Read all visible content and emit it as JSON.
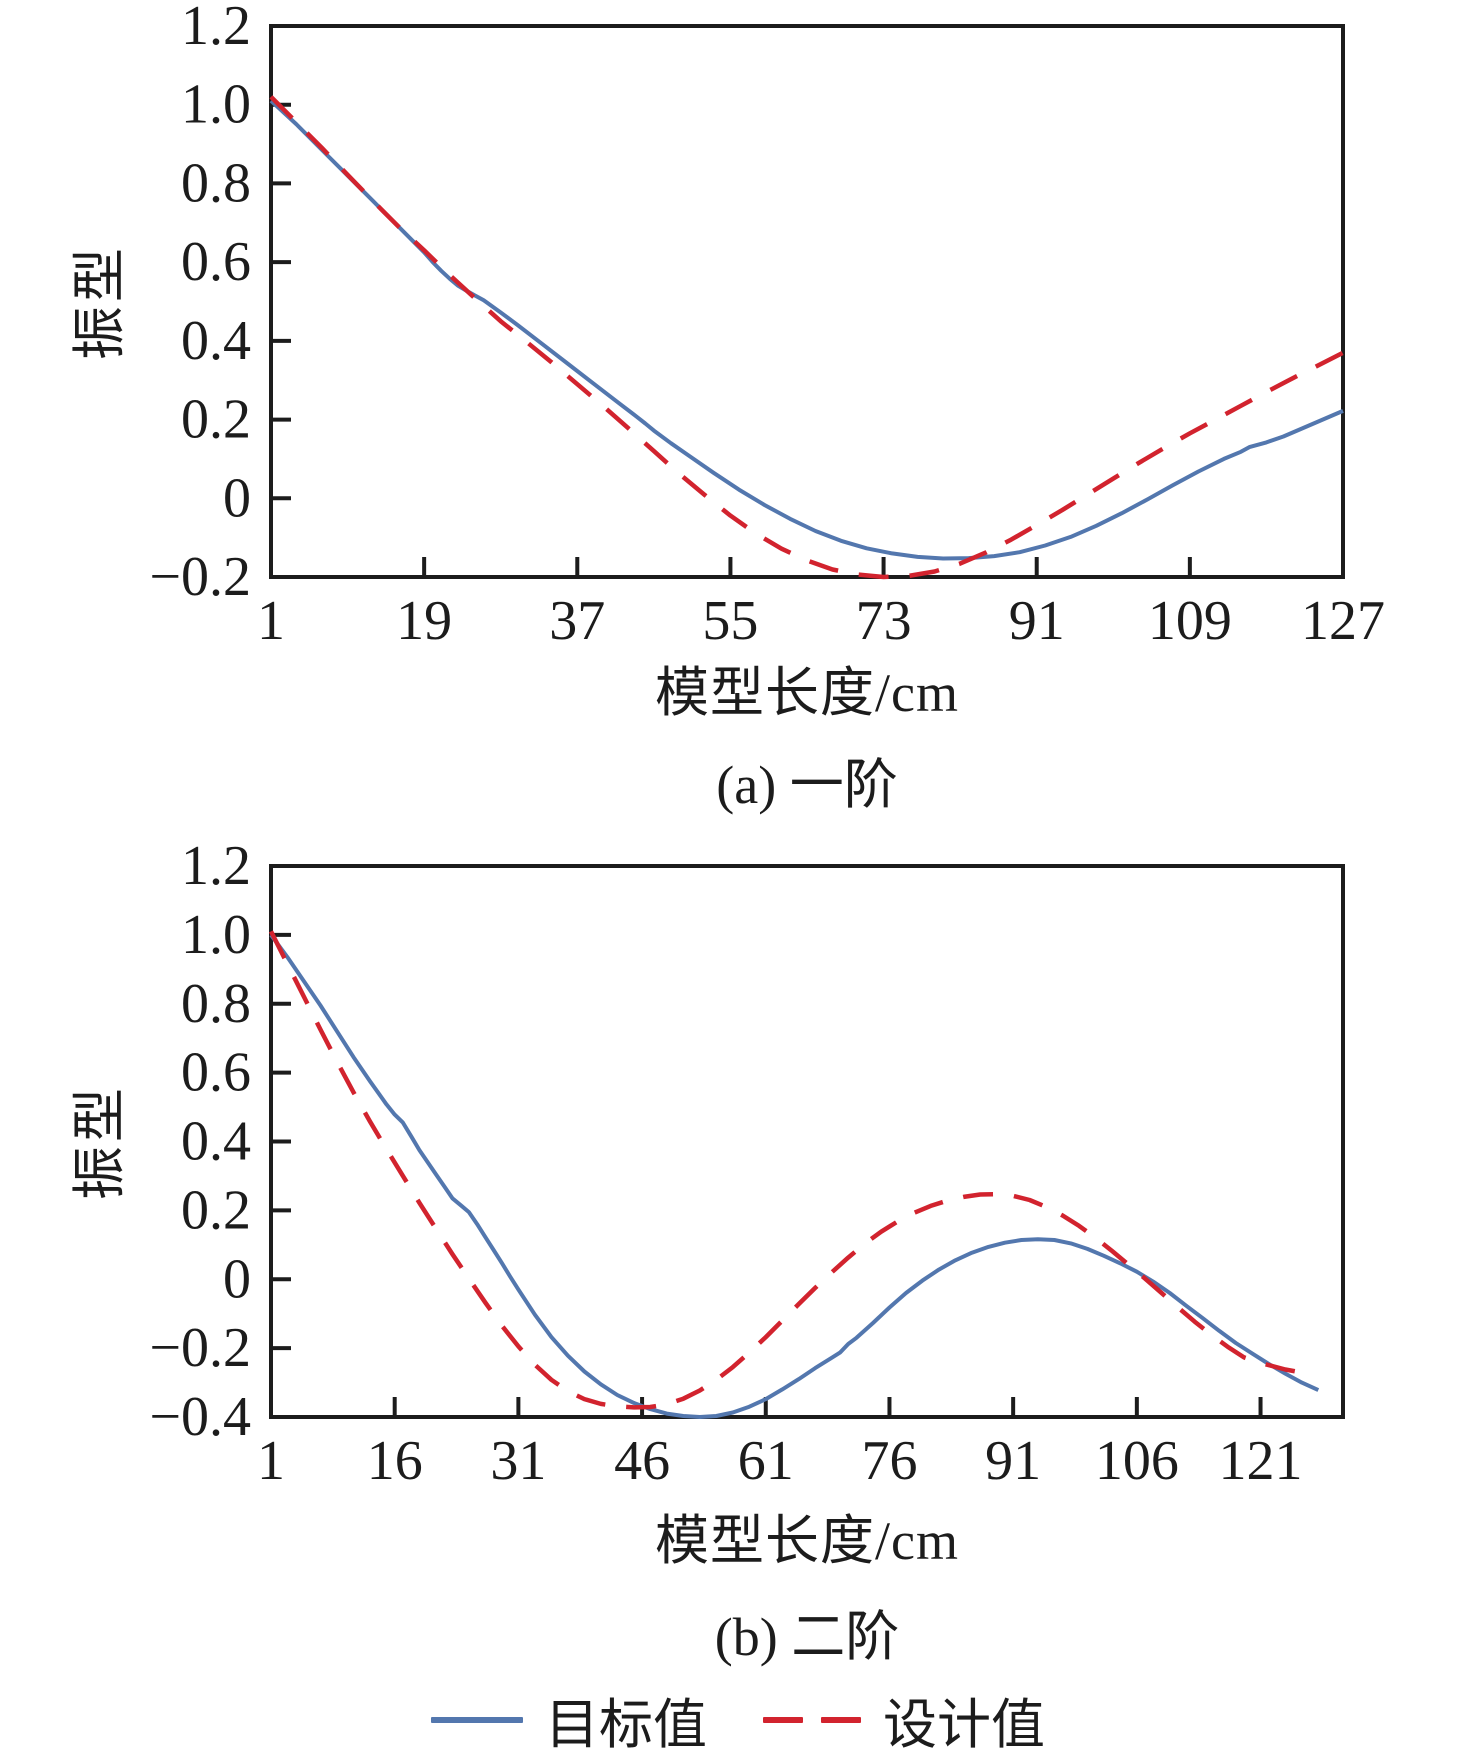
{
  "colors": {
    "target_line": "#5377ae",
    "design_line": "#d2232e",
    "axis": "#1c1c1c",
    "text": "#1c1c1c",
    "background": "#ffffff"
  },
  "legend": {
    "target_label": "目标值",
    "design_label": "设计值"
  },
  "chart_data": [
    {
      "type": "line",
      "caption": "(a) 一阶",
      "xlabel": "模型长度/cm",
      "ylabel": "振型",
      "xlim": [
        1,
        127
      ],
      "ylim": [
        -0.2,
        1.2
      ],
      "grid": false,
      "x_ticks": [
        1,
        19,
        37,
        55,
        73,
        91,
        109,
        127
      ],
      "x_tick_labels": [
        "1",
        "19",
        "37",
        "55",
        "73",
        "91",
        "109",
        "127"
      ],
      "y_ticks": [
        1.2,
        1.0,
        0.8,
        0.6,
        0.4,
        0.2,
        0,
        -0.2
      ],
      "y_tick_labels": [
        "1.2",
        "1.0",
        "0.8",
        "0.6",
        "0.4",
        "0.2",
        "0",
        "−0.2"
      ],
      "series": [
        {
          "name": "目标值",
          "line_style": "solid",
          "color": "#5377ae",
          "points": [
            [
              1,
              1.01
            ],
            [
              4,
              0.95
            ],
            [
              7,
              0.885
            ],
            [
              10,
              0.82
            ],
            [
              13,
              0.755
            ],
            [
              16,
              0.69
            ],
            [
              19,
              0.625
            ],
            [
              20,
              0.6
            ],
            [
              21,
              0.578
            ],
            [
              22,
              0.558
            ],
            [
              23,
              0.54
            ],
            [
              24,
              0.527
            ],
            [
              25,
              0.515
            ],
            [
              26,
              0.503
            ],
            [
              28,
              0.472
            ],
            [
              30,
              0.44
            ],
            [
              33,
              0.39
            ],
            [
              36,
              0.34
            ],
            [
              39,
              0.29
            ],
            [
              42,
              0.24
            ],
            [
              44,
              0.207
            ],
            [
              45,
              0.19
            ],
            [
              46,
              0.172
            ],
            [
              48,
              0.14
            ],
            [
              50,
              0.11
            ],
            [
              53,
              0.065
            ],
            [
              56,
              0.022
            ],
            [
              59,
              -0.017
            ],
            [
              62,
              -0.052
            ],
            [
              65,
              -0.083
            ],
            [
              68,
              -0.108
            ],
            [
              71,
              -0.127
            ],
            [
              74,
              -0.14
            ],
            [
              77,
              -0.149
            ],
            [
              80,
              -0.153
            ],
            [
              83,
              -0.152
            ],
            [
              86,
              -0.147
            ],
            [
              89,
              -0.137
            ],
            [
              92,
              -0.12
            ],
            [
              95,
              -0.098
            ],
            [
              98,
              -0.07
            ],
            [
              101,
              -0.038
            ],
            [
              104,
              -0.003
            ],
            [
              107,
              0.033
            ],
            [
              110,
              0.068
            ],
            [
              113,
              0.1
            ],
            [
              115,
              0.118
            ],
            [
              116,
              0.13
            ],
            [
              118,
              0.142
            ],
            [
              120,
              0.157
            ],
            [
              123,
              0.185
            ],
            [
              127,
              0.222
            ]
          ]
        },
        {
          "name": "设计值",
          "line_style": "dashed",
          "color": "#d2232e",
          "points": [
            [
              1,
              1.02
            ],
            [
              4,
              0.955
            ],
            [
              7,
              0.89
            ],
            [
              10,
              0.822
            ],
            [
              13,
              0.755
            ],
            [
              16,
              0.69
            ],
            [
              19,
              0.63
            ],
            [
              22,
              0.567
            ],
            [
              25,
              0.508
            ],
            [
              28,
              0.45
            ],
            [
              31,
              0.398
            ],
            [
              34,
              0.345
            ],
            [
              37,
              0.29
            ],
            [
              40,
              0.235
            ],
            [
              43,
              0.178
            ],
            [
              46,
              0.12
            ],
            [
              49,
              0.062
            ],
            [
              52,
              0.008
            ],
            [
              55,
              -0.044
            ],
            [
              58,
              -0.09
            ],
            [
              61,
              -0.128
            ],
            [
              64,
              -0.158
            ],
            [
              67,
              -0.181
            ],
            [
              70,
              -0.194
            ],
            [
              73,
              -0.2
            ],
            [
              76,
              -0.197
            ],
            [
              79,
              -0.186
            ],
            [
              82,
              -0.166
            ],
            [
              85,
              -0.138
            ],
            [
              88,
              -0.105
            ],
            [
              91,
              -0.068
            ],
            [
              94,
              -0.03
            ],
            [
              97,
              0.01
            ],
            [
              100,
              0.05
            ],
            [
              103,
              0.09
            ],
            [
              106,
              0.128
            ],
            [
              109,
              0.165
            ],
            [
              112,
              0.2
            ],
            [
              115,
              0.235
            ],
            [
              118,
              0.27
            ],
            [
              121,
              0.304
            ],
            [
              124,
              0.337
            ],
            [
              127,
              0.37
            ]
          ]
        }
      ]
    },
    {
      "type": "line",
      "caption": "(b) 二阶",
      "xlabel": "模型长度/cm",
      "ylabel": "振型",
      "xlim": [
        1,
        131
      ],
      "ylim": [
        -0.4,
        1.2
      ],
      "grid": false,
      "x_ticks": [
        1,
        16,
        31,
        46,
        61,
        76,
        91,
        106,
        121
      ],
      "x_tick_labels": [
        "1",
        "16",
        "31",
        "46",
        "61",
        "76",
        "91",
        "106",
        "121"
      ],
      "y_ticks": [
        1.2,
        1.0,
        0.8,
        0.6,
        0.4,
        0.2,
        0,
        -0.2,
        -0.4
      ],
      "y_tick_labels": [
        "1.2",
        "1.0",
        "0.8",
        "0.6",
        "0.4",
        "0.2",
        "0",
        "−0.2",
        "−0.4"
      ],
      "series": [
        {
          "name": "目标值",
          "line_style": "solid",
          "color": "#5377ae",
          "points": [
            [
              1,
              1.0
            ],
            [
              3,
              0.935
            ],
            [
              5,
              0.865
            ],
            [
              7,
              0.795
            ],
            [
              9,
              0.72
            ],
            [
              11,
              0.645
            ],
            [
              13,
              0.575
            ],
            [
              15,
              0.508
            ],
            [
              16,
              0.478
            ],
            [
              17,
              0.455
            ],
            [
              18,
              0.415
            ],
            [
              19,
              0.375
            ],
            [
              20,
              0.34
            ],
            [
              21,
              0.305
            ],
            [
              22,
              0.27
            ],
            [
              23,
              0.235
            ],
            [
              24,
              0.215
            ],
            [
              25,
              0.195
            ],
            [
              26,
              0.16
            ],
            [
              27,
              0.122
            ],
            [
              28,
              0.085
            ],
            [
              29,
              0.047
            ],
            [
              30,
              0.008
            ],
            [
              31,
              -0.03
            ],
            [
              33,
              -0.103
            ],
            [
              35,
              -0.168
            ],
            [
              37,
              -0.222
            ],
            [
              39,
              -0.268
            ],
            [
              41,
              -0.305
            ],
            [
              43,
              -0.336
            ],
            [
              45,
              -0.359
            ],
            [
              47,
              -0.377
            ],
            [
              49,
              -0.39
            ],
            [
              51,
              -0.397
            ],
            [
              53,
              -0.4
            ],
            [
              55,
              -0.397
            ],
            [
              57,
              -0.387
            ],
            [
              59,
              -0.37
            ],
            [
              61,
              -0.348
            ],
            [
              63,
              -0.32
            ],
            [
              65,
              -0.29
            ],
            [
              67,
              -0.258
            ],
            [
              69,
              -0.228
            ],
            [
              70,
              -0.213
            ],
            [
              71,
              -0.188
            ],
            [
              72,
              -0.17
            ],
            [
              74,
              -0.127
            ],
            [
              76,
              -0.082
            ],
            [
              78,
              -0.04
            ],
            [
              80,
              -0.004
            ],
            [
              82,
              0.028
            ],
            [
              84,
              0.055
            ],
            [
              86,
              0.077
            ],
            [
              88,
              0.094
            ],
            [
              90,
              0.106
            ],
            [
              92,
              0.114
            ],
            [
              94,
              0.116
            ],
            [
              96,
              0.114
            ],
            [
              98,
              0.104
            ],
            [
              100,
              0.088
            ],
            [
              102,
              0.068
            ],
            [
              104,
              0.046
            ],
            [
              106,
              0.022
            ],
            [
              108,
              -0.007
            ],
            [
              110,
              -0.04
            ],
            [
              112,
              -0.077
            ],
            [
              114,
              -0.113
            ],
            [
              116,
              -0.15
            ],
            [
              118,
              -0.185
            ],
            [
              120,
              -0.216
            ],
            [
              122,
              -0.246
            ],
            [
              124,
              -0.274
            ],
            [
              126,
              -0.3
            ],
            [
              128,
              -0.322
            ]
          ]
        },
        {
          "name": "设计值",
          "line_style": "dashed",
          "color": "#d2232e",
          "points": [
            [
              1,
              1.01
            ],
            [
              3,
              0.915
            ],
            [
              5,
              0.82
            ],
            [
              7,
              0.725
            ],
            [
              9,
              0.632
            ],
            [
              11,
              0.543
            ],
            [
              13,
              0.458
            ],
            [
              15,
              0.378
            ],
            [
              17,
              0.3
            ],
            [
              19,
              0.222
            ],
            [
              21,
              0.147
            ],
            [
              23,
              0.073
            ],
            [
              25,
              0.002
            ],
            [
              27,
              -0.068
            ],
            [
              29,
              -0.135
            ],
            [
              31,
              -0.195
            ],
            [
              33,
              -0.248
            ],
            [
              35,
              -0.292
            ],
            [
              37,
              -0.325
            ],
            [
              39,
              -0.348
            ],
            [
              41,
              -0.362
            ],
            [
              43,
              -0.369
            ],
            [
              45,
              -0.372
            ],
            [
              47,
              -0.371
            ],
            [
              49,
              -0.363
            ],
            [
              51,
              -0.347
            ],
            [
              53,
              -0.323
            ],
            [
              55,
              -0.292
            ],
            [
              57,
              -0.255
            ],
            [
              59,
              -0.213
            ],
            [
              61,
              -0.168
            ],
            [
              63,
              -0.12
            ],
            [
              65,
              -0.072
            ],
            [
              67,
              -0.025
            ],
            [
              69,
              0.02
            ],
            [
              71,
              0.063
            ],
            [
              73,
              0.103
            ],
            [
              75,
              0.138
            ],
            [
              77,
              0.168
            ],
            [
              79,
              0.193
            ],
            [
              81,
              0.213
            ],
            [
              83,
              0.228
            ],
            [
              85,
              0.239
            ],
            [
              87,
              0.246
            ],
            [
              89,
              0.247
            ],
            [
              91,
              0.242
            ],
            [
              93,
              0.23
            ],
            [
              95,
              0.21
            ],
            [
              97,
              0.185
            ],
            [
              99,
              0.155
            ],
            [
              101,
              0.12
            ],
            [
              103,
              0.082
            ],
            [
              105,
              0.042
            ],
            [
              107,
              0.002
            ],
            [
              109,
              -0.04
            ],
            [
              111,
              -0.082
            ],
            [
              113,
              -0.123
            ],
            [
              115,
              -0.161
            ],
            [
              117,
              -0.196
            ],
            [
              119,
              -0.227
            ],
            [
              121,
              -0.243
            ],
            [
              124,
              -0.262
            ],
            [
              127,
              -0.275
            ]
          ]
        }
      ]
    }
  ]
}
